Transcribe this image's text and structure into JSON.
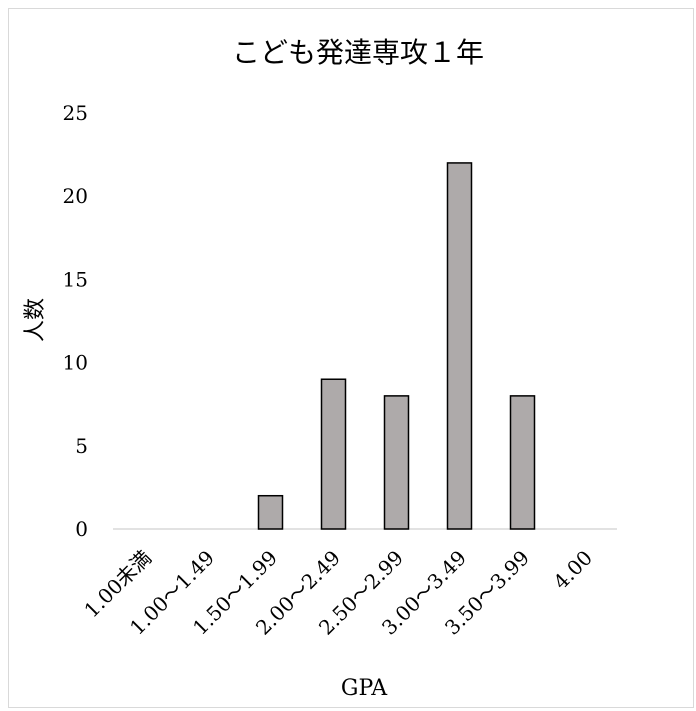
{
  "chart_data": {
    "type": "bar",
    "title": "こども発達専攻１年",
    "xlabel": "GPA",
    "ylabel": "人数",
    "categories": [
      "1.00未満",
      "1.00～1.49",
      "1.50～1.99",
      "2.00～2.49",
      "2.50～2.99",
      "3.00～3.49",
      "3.50～3.99",
      "4.00"
    ],
    "values": [
      0,
      0,
      2,
      9,
      8,
      22,
      8,
      0
    ],
    "ylim": [
      0,
      25
    ],
    "yticks": [
      0,
      5,
      10,
      15,
      20,
      25
    ],
    "grid": false,
    "legend": "none",
    "bar_color": "#aeaaaa",
    "bar_edge_color": "#000000"
  }
}
